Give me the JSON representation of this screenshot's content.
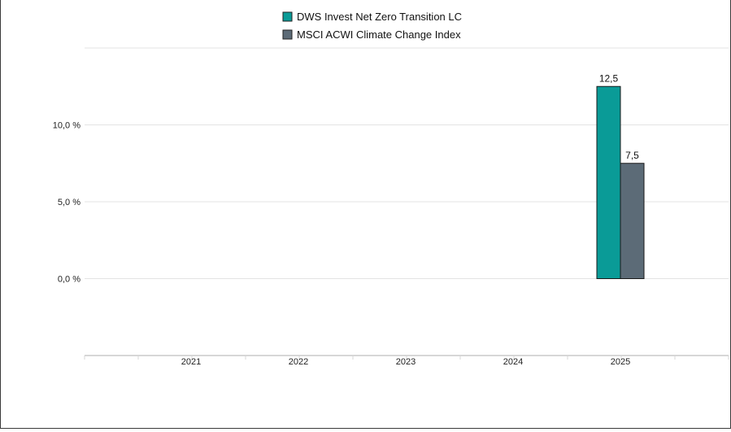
{
  "chart_data": {
    "type": "bar",
    "categories": [
      "2021",
      "2022",
      "2023",
      "2024",
      "2025"
    ],
    "series": [
      {
        "name": "DWS Invest Net Zero Transition LC",
        "color": "#0a9b97",
        "values": [
          null,
          null,
          null,
          null,
          12.5
        ],
        "labels": [
          "",
          "",
          "",
          "",
          "12,5"
        ]
      },
      {
        "name": "MSCI ACWI Climate Change Index",
        "color": "#5c6b77",
        "values": [
          null,
          null,
          null,
          null,
          7.5
        ],
        "labels": [
          "",
          "",
          "",
          "",
          "7,5"
        ]
      }
    ],
    "y_ticks": [
      {
        "value": 0,
        "label": "0,0 %"
      },
      {
        "value": 5,
        "label": "5,0 %"
      },
      {
        "value": 10,
        "label": "10,0 %"
      }
    ],
    "ylim": [
      -5,
      15
    ],
    "grid": true,
    "legend": "top-center"
  }
}
